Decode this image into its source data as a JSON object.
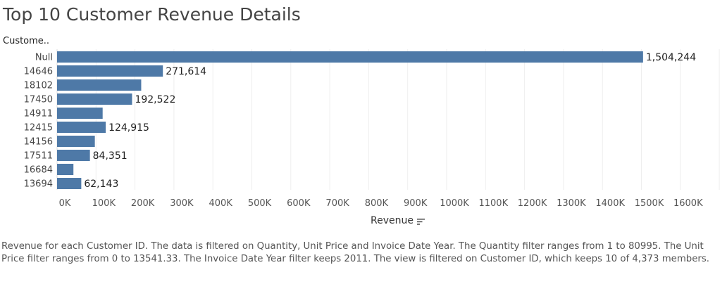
{
  "title": "Top 10 Customer Revenue Details",
  "column_header": "Custome..",
  "x_axis_title": "Revenue",
  "caption": "Revenue for each Customer ID. The data is filtered on Quantity, Unit Price and Invoice Date Year. The Quantity filter ranges from 1 to 80995. The Unit Price filter ranges from 0 to 13541.33. The Invoice Date Year filter keeps 2011. The view is filtered on Customer ID, which keeps 10 of 4,373 members.",
  "colors": {
    "bar": "#4e79a7",
    "grid": "#eeeeee",
    "text": "#333333"
  },
  "icons": {
    "sort": "sort-descending-icon"
  },
  "chart_data": {
    "type": "bar",
    "orientation": "horizontal",
    "title": "Top 10 Customer Revenue Details",
    "xlabel": "Revenue",
    "ylabel": "Custome..",
    "categories": [
      "Null",
      "14646",
      "18102",
      "17450",
      "14911",
      "12415",
      "14156",
      "17511",
      "16684",
      "13694"
    ],
    "values": [
      1504244,
      271614,
      216000,
      192522,
      117000,
      124915,
      97000,
      84351,
      42000,
      62143
    ],
    "data_labels": [
      "1,504,244",
      "271,614",
      "",
      "192,522",
      "",
      "124,915",
      "",
      "84,351",
      "",
      "62,143"
    ],
    "xlim": [
      0,
      1700000
    ],
    "x_ticks": [
      0,
      100000,
      200000,
      300000,
      400000,
      500000,
      600000,
      700000,
      800000,
      900000,
      1000000,
      1100000,
      1200000,
      1300000,
      1400000,
      1500000,
      1600000
    ],
    "x_tick_labels": [
      "0K",
      "100K",
      "200K",
      "300K",
      "400K",
      "500K",
      "600K",
      "700K",
      "800K",
      "900K",
      "1000K",
      "1100K",
      "1200K",
      "1300K",
      "1400K",
      "1500K",
      "1600K"
    ],
    "grid": true,
    "legend": "none"
  }
}
